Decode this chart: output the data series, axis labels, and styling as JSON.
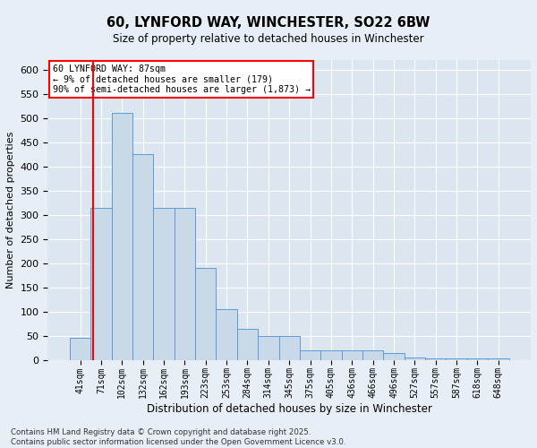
{
  "title1": "60, LYNFORD WAY, WINCHESTER, SO22 6BW",
  "title2": "Size of property relative to detached houses in Winchester",
  "xlabel": "Distribution of detached houses by size in Winchester",
  "ylabel": "Number of detached properties",
  "footnote": "Contains HM Land Registry data © Crown copyright and database right 2025.\nContains public sector information licensed under the Open Government Licence v3.0.",
  "categories": [
    "41sqm",
    "71sqm",
    "102sqm",
    "132sqm",
    "162sqm",
    "193sqm",
    "223sqm",
    "253sqm",
    "284sqm",
    "314sqm",
    "345sqm",
    "375sqm",
    "405sqm",
    "436sqm",
    "466sqm",
    "496sqm",
    "527sqm",
    "557sqm",
    "587sqm",
    "618sqm",
    "648sqm"
  ],
  "values": [
    45,
    315,
    510,
    425,
    315,
    315,
    190,
    105,
    65,
    50,
    50,
    20,
    20,
    20,
    20,
    15,
    5,
    3,
    3,
    3,
    3
  ],
  "bar_color": "#c9d9e8",
  "bar_edge_color": "#5b9bd5",
  "background_color": "#dce6f1",
  "fig_background": "#e8eef5",
  "annotation_text": "60 LYNFORD WAY: 87sqm\n← 9% of detached houses are smaller (179)\n90% of semi-detached houses are larger (1,873) →",
  "red_line_x": 0.6,
  "ylim": [
    0,
    620
  ],
  "yticks": [
    0,
    50,
    100,
    150,
    200,
    250,
    300,
    350,
    400,
    450,
    500,
    550,
    600
  ]
}
